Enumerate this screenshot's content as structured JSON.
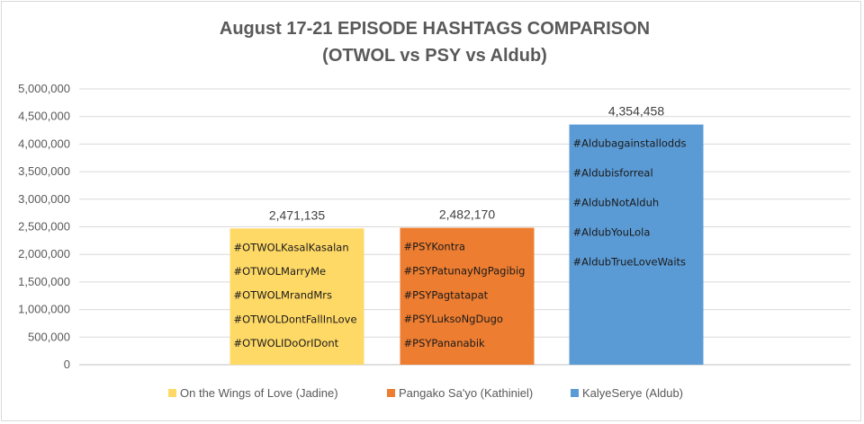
{
  "chart_data": {
    "type": "bar",
    "title": "August 17-21 EPISODE HASHTAGS COMPARISON",
    "subtitle": "(OTWOL vs PSY vs Aldub)",
    "xlabel": "",
    "ylabel": "",
    "ylim": [
      0,
      5000000
    ],
    "y_ticks": [
      "0",
      "500,000",
      "1,000,000",
      "1,500,000",
      "2,000,000",
      "2,500,000",
      "3,000,000",
      "3,500,000",
      "4,000,000",
      "4,500,000",
      "5,000,000"
    ],
    "grid": true,
    "legend_position": "bottom",
    "series": [
      {
        "name": "On the Wings of Love (Jadine)",
        "color": "#FFD966",
        "value": 2471135,
        "data_label": "2,471,135",
        "hashtags": [
          "#OTWOLKasalKasalan",
          "#OTWOLMarryMe",
          "#OTWOLMrandMrs",
          "#OTWOLDontFallInLove",
          "#OTWOLIDoOrIDont"
        ]
      },
      {
        "name": "Pangako Sa'yo (Kathiniel)",
        "color": "#ED7D31",
        "value": 2482170,
        "data_label": "2,482,170",
        "hashtags": [
          "#PSYKontra",
          "#PSYPatunayNgPagibig",
          "#PSYPagtatapat",
          "#PSYLuksoNgDugo",
          "#PSYPananabik"
        ]
      },
      {
        "name": "KalyeSerye (Aldub)",
        "color": "#5B9BD5",
        "value": 4354458,
        "data_label": "4,354,458",
        "hashtags": [
          "#Aldubagainstallodds",
          "#Aldubisforreal",
          "#AldubNotAlduh",
          "#AldubYouLola",
          "#AldubTrueLoveWaits"
        ]
      }
    ]
  }
}
